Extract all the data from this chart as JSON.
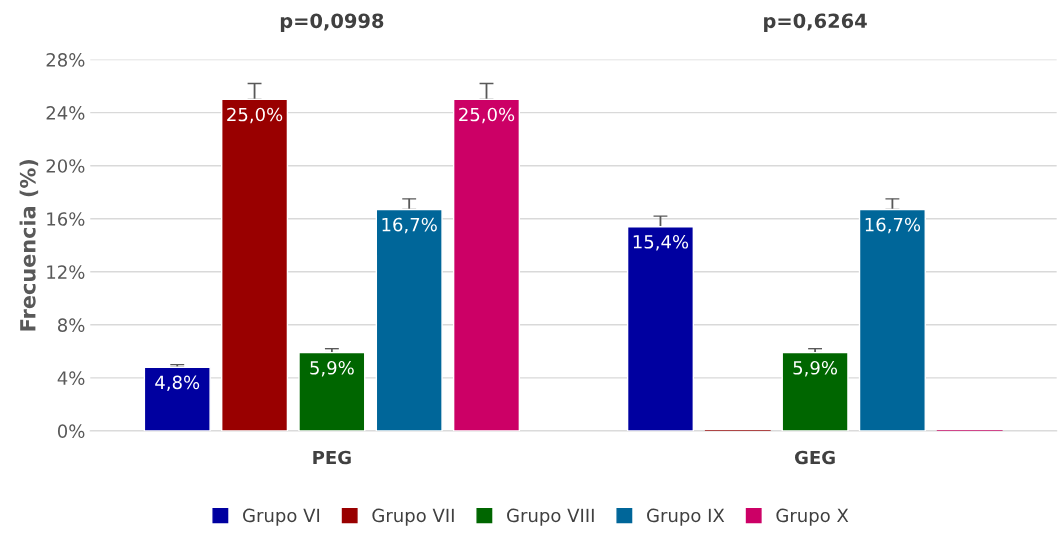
{
  "chart_data": {
    "type": "bar",
    "categories": [
      "PEG",
      "GEG"
    ],
    "ylabel": "Frecuencia (%)",
    "ylim": [
      0,
      28
    ],
    "yticks": [
      {
        "value": 0,
        "label": "0%"
      },
      {
        "value": 4,
        "label": "4%"
      },
      {
        "value": 8,
        "label": "8%"
      },
      {
        "value": 12,
        "label": "12%"
      },
      {
        "value": 16,
        "label": "16%"
      },
      {
        "value": 20,
        "label": "20%"
      },
      {
        "value": 24,
        "label": "24%"
      },
      {
        "value": 28,
        "label": "28%"
      }
    ],
    "grid": "y",
    "legend": "bottom",
    "annotations": [
      "p=0,0998",
      "p=0,6264"
    ],
    "series": [
      {
        "name": "Grupo VI",
        "color": "#0000a0",
        "values": [
          4.8,
          15.4
        ],
        "errors": [
          [
            4.8,
            5.0
          ],
          [
            15.4,
            16.2
          ]
        ],
        "value_labels": [
          "4,8%",
          "15,4%"
        ]
      },
      {
        "name": "Grupo VII",
        "color": "#990000",
        "values": [
          25.0,
          0
        ],
        "errors": [
          [
            25.0,
            26.2
          ],
          null
        ],
        "value_labels": [
          "25,0%",
          null
        ]
      },
      {
        "name": "Grupo VIII",
        "color": "#006600",
        "values": [
          5.9,
          5.9
        ],
        "errors": [
          [
            5.9,
            6.2
          ],
          [
            5.9,
            6.2
          ]
        ],
        "value_labels": [
          "5,9%",
          "5,9%"
        ]
      },
      {
        "name": "Grupo IX",
        "color": "#006699",
        "values": [
          16.7,
          16.7
        ],
        "errors": [
          [
            16.7,
            17.5
          ],
          [
            16.7,
            17.5
          ]
        ],
        "value_labels": [
          "16,7%",
          "16,7%"
        ]
      },
      {
        "name": "Grupo X",
        "color": "#cc0066",
        "values": [
          25.0,
          0
        ],
        "errors": [
          [
            25.0,
            26.2
          ],
          null
        ],
        "value_labels": [
          "25,0%",
          null
        ]
      }
    ]
  }
}
